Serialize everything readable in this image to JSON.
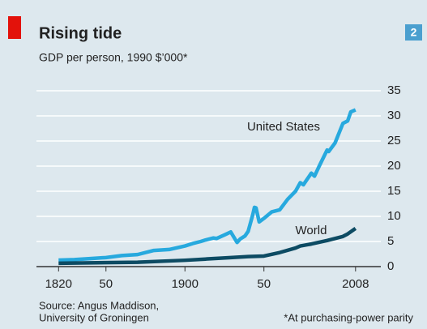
{
  "chart_data": {
    "type": "line",
    "title": "Rising tide",
    "subtitle": "GDP per person, 1990 $’000*",
    "badge": "2",
    "source": [
      "Source: Angus Maddison,",
      "University of Groningen"
    ],
    "note": "*At purchasing-power parity",
    "xlim": [
      1806,
      2024
    ],
    "xticks": [
      1820,
      {
        "value": 1850,
        "label": "50"
      },
      1900,
      {
        "value": 1950,
        "label": "50"
      },
      2008
    ],
    "ylim": [
      0,
      35
    ],
    "yticks": [
      0,
      5,
      10,
      15,
      20,
      25,
      30,
      35
    ],
    "grid": true,
    "series": [
      {
        "name": "United States",
        "color": "#27a9de",
        "x": [
          1820,
          1830,
          1840,
          1850,
          1860,
          1870,
          1880,
          1890,
          1900,
          1905,
          1910,
          1913,
          1918,
          1920,
          1925,
          1929,
          1933,
          1935,
          1938,
          1940,
          1943,
          1944,
          1945,
          1947,
          1950,
          1955,
          1960,
          1965,
          1970,
          1973,
          1975,
          1980,
          1982,
          1985,
          1990,
          1991,
          1995,
          2000,
          2003,
          2005,
          2008
        ],
        "values": [
          1.3,
          1.4,
          1.6,
          1.8,
          2.2,
          2.4,
          3.2,
          3.4,
          4.1,
          4.6,
          5.0,
          5.3,
          5.7,
          5.6,
          6.3,
          6.9,
          4.8,
          5.5,
          6.1,
          7.0,
          10.4,
          11.8,
          11.7,
          8.9,
          9.6,
          10.9,
          11.3,
          13.4,
          15.0,
          16.7,
          16.3,
          18.6,
          18.0,
          20.0,
          23.2,
          22.9,
          24.6,
          28.5,
          29.0,
          30.8,
          31.2
        ]
      },
      {
        "name": "World",
        "color": "#0d4b63",
        "x": [
          1820,
          1870,
          1900,
          1913,
          1929,
          1940,
          1950,
          1960,
          1970,
          1973,
          1980,
          1990,
          2000,
          2003,
          2008
        ],
        "values": [
          0.67,
          0.87,
          1.26,
          1.5,
          1.8,
          2.0,
          2.1,
          2.8,
          3.7,
          4.1,
          4.5,
          5.2,
          6.0,
          6.5,
          7.6
        ]
      }
    ]
  }
}
